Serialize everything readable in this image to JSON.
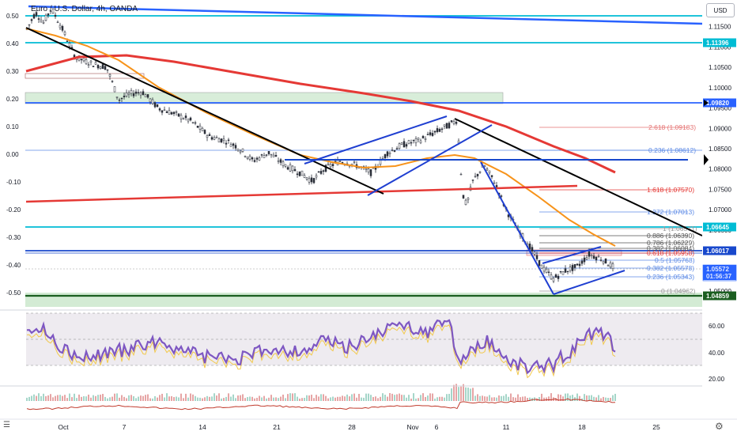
{
  "header": {
    "title": "Euro / U.S. Dollar, 4h, OANDA",
    "currency": "USD"
  },
  "chart_data": {
    "type": "line",
    "instrument": "Euro / U.S. Dollar",
    "interval": "4h",
    "source": "OANDA",
    "right_axis": {
      "unit": "USD",
      "ticks": [
        "1.12000",
        "1.11500",
        "1.11000",
        "1.10500",
        "1.10000",
        "1.09500",
        "1.09000",
        "1.08500",
        "1.08000",
        "1.07500",
        "1.07000",
        "1.06500",
        "1.06000",
        "1.05500",
        "1.05000"
      ]
    },
    "left_axis": {
      "ticks": [
        "0.50",
        "0.40",
        "0.30",
        "0.20",
        "0.10",
        "0.00",
        "-0.10",
        "-0.20",
        "-0.30",
        "-0.40",
        "-0.50"
      ]
    },
    "x_axis": {
      "ticks": [
        "Oct",
        "7",
        "14",
        "21",
        "28",
        "Nov",
        "6",
        "11",
        "18",
        "25"
      ]
    },
    "price_labels": [
      {
        "text": "1.11396",
        "color": "#00bcd4"
      },
      {
        "text": "1.09820",
        "color": "#2962ff"
      },
      {
        "text": "1.06645",
        "color": "#00bcd4"
      },
      {
        "text": "1.06017",
        "color": "#1848cc"
      },
      {
        "text": "1.05572",
        "color": "#2962ff"
      },
      {
        "text": "01:56:37",
        "color": "#2962ff"
      },
      {
        "text": "1.04859",
        "color": "#1b5e20"
      }
    ],
    "fibonacci": [
      {
        "label": "2.618 (1.09183)",
        "color": "#e57373"
      },
      {
        "label": "0.236 (1.08612)",
        "color": "#5c8ae6"
      },
      {
        "label": "1.618 (1.07570)",
        "color": "#e53935"
      },
      {
        "label": "1.272 (1.07013)",
        "color": "#5c8ae6"
      },
      {
        "label": "1 (1.06571)",
        "color": "#999999"
      },
      {
        "label": "0.886 (1.06390)",
        "color": "#555555"
      },
      {
        "label": "0.786 (1.06229)",
        "color": "#555555"
      },
      {
        "label": "0.382 (1.06084)",
        "color": "#555555"
      },
      {
        "label": "0.618 (1.05958)",
        "color": "#e53935"
      },
      {
        "label": "0.5 (1.05768)",
        "color": "#5c8ae6"
      },
      {
        "label": "0.382 (1.05578)",
        "color": "#5c8ae6"
      },
      {
        "label": "0.236 (1.05343)",
        "color": "#5c8ae6"
      },
      {
        "label": "0 (1.04962)",
        "color": "#999999"
      }
    ],
    "rsi_axis": {
      "ticks": [
        "60.00",
        "40.00",
        "20.00"
      ]
    },
    "colors": {
      "candle": "#2a2e39",
      "ma_fast": "#f7931a",
      "ma_slow": "#e53935",
      "rsi": "#7e57c2",
      "trend_black": "#000000",
      "trend_blue": "#1f3fd1",
      "support_teal": "#00bcd4",
      "zone_green": "#c8e6c9"
    },
    "grid": false
  }
}
